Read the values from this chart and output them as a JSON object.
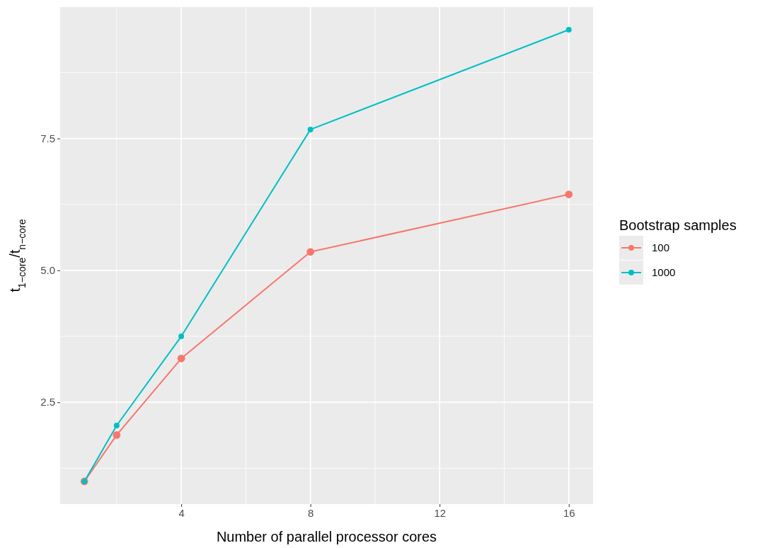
{
  "chart_data": {
    "type": "line",
    "xlabel": "Number of parallel processor cores",
    "ylabel": "t$_{1−core}$/t$_{n−core}$",
    "legend_title": "Bootstrap samples",
    "x": [
      1,
      2,
      4,
      8,
      16
    ],
    "series": [
      {
        "name": "100",
        "color": "#f8766d",
        "values": [
          1.0,
          1.88,
          3.33,
          5.35,
          6.44
        ]
      },
      {
        "name": "1000",
        "color": "#00bfc4",
        "values": [
          1.0,
          2.06,
          3.75,
          7.67,
          9.56
        ]
      }
    ],
    "xlim": [
      0.25,
      16.75
    ],
    "xticks": [
      4,
      8,
      12,
      16
    ],
    "ylim": [
      0.57,
      9.99
    ],
    "yticks": [
      2.5,
      {
        "value": 5,
        "label": "5.0"
      },
      7.5
    ],
    "grid": true,
    "legend": "right",
    "marker": "circle",
    "line_style": "solid"
  }
}
